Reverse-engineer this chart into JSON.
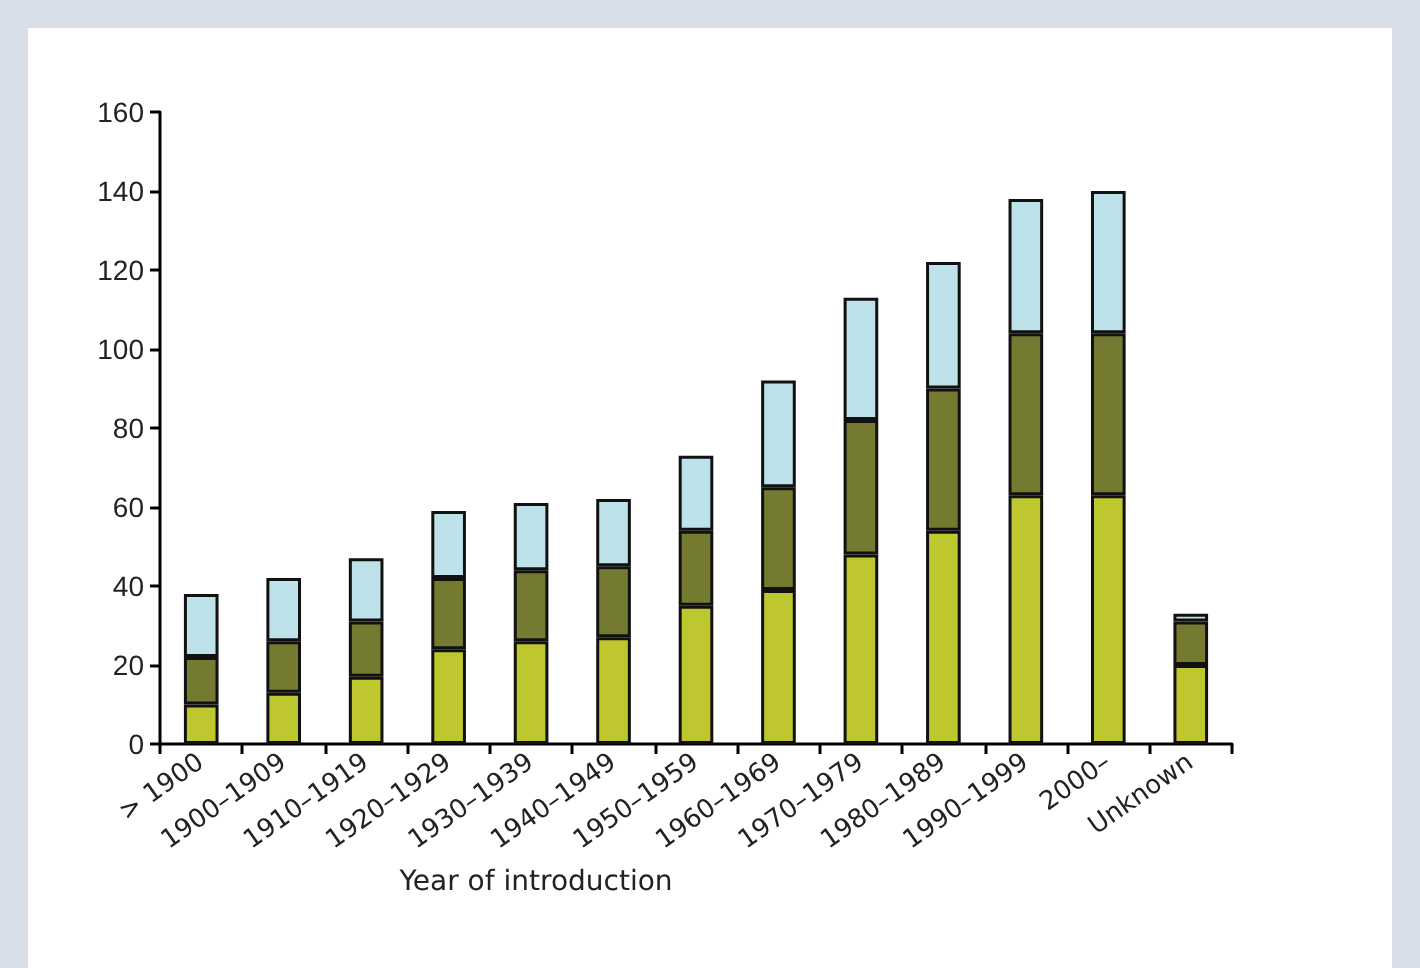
{
  "chart_data": {
    "type": "bar",
    "xlabel": "Year of introduction",
    "categories": [
      "> 1900",
      "1900–1909",
      "1910–1919",
      "1920–1929",
      "1930–1939",
      "1940–1949",
      "1950–1959",
      "1960–1969",
      "1970–1979",
      "1980–1989",
      "1990–1999",
      "2000–",
      "Unknown"
    ],
    "stacked": true,
    "ylim": [
      0,
      160
    ],
    "yticks": [
      0,
      20,
      40,
      60,
      80,
      100,
      120,
      140,
      160
    ],
    "grid": false,
    "series": [
      {
        "color": "#bfc72e",
        "values": [
          10,
          13,
          17,
          24,
          26,
          27,
          35,
          39,
          48,
          54,
          63,
          63,
          20
        ]
      },
      {
        "color": "#747b30",
        "values": [
          12,
          13,
          14,
          18,
          18,
          18,
          19,
          26,
          34,
          36,
          41,
          41,
          11
        ]
      },
      {
        "color": "#bde2ea",
        "values": [
          16,
          16,
          16,
          17,
          17,
          17,
          19,
          27,
          31,
          32,
          34,
          36,
          2
        ]
      }
    ]
  }
}
